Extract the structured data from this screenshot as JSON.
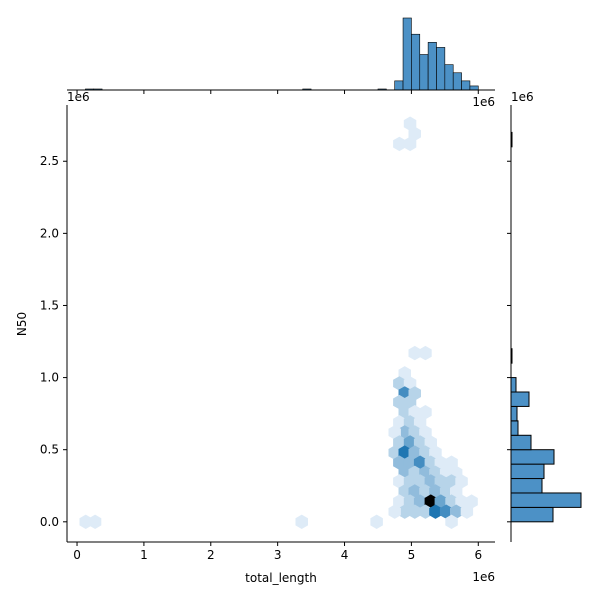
{
  "chart_data": {
    "type": "hexbin",
    "kind": "jointplot",
    "xlabel": "total_length",
    "ylabel": "N50",
    "x_offset_label": "1e6",
    "y_offset_label": "1e6",
    "xlim": [
      -0.15,
      6.25
    ],
    "ylim": [
      -0.14,
      2.89
    ],
    "x_ticks": [
      0,
      1,
      2,
      3,
      4,
      5,
      6
    ],
    "x_tick_labels": [
      "0",
      "1",
      "2",
      "3",
      "4",
      "5",
      "6"
    ],
    "y_ticks": [
      0.0,
      0.5,
      1.0,
      1.5,
      2.0,
      2.5
    ],
    "y_tick_labels": [
      "0.0",
      "0.5",
      "1.0",
      "1.5",
      "2.0",
      "2.5"
    ],
    "colors": {
      "base": "#1f77b4",
      "low": "#deebf7",
      "high": "#000000",
      "bar_fill": "#4c91c6",
      "bar_edge": "#000000"
    },
    "hexbin_cells": [
      {
        "x": 0.13,
        "y": 0.0,
        "c": 1
      },
      {
        "x": 0.27,
        "y": 0.0,
        "c": 1
      },
      {
        "x": 3.36,
        "y": 0.0,
        "c": 1
      },
      {
        "x": 4.48,
        "y": 0.0,
        "c": 1
      },
      {
        "x": 4.82,
        "y": 2.62,
        "c": 1
      },
      {
        "x": 4.98,
        "y": 2.62,
        "c": 1
      },
      {
        "x": 4.98,
        "y": 2.76,
        "c": 1
      },
      {
        "x": 5.05,
        "y": 2.69,
        "c": 1
      },
      {
        "x": 5.05,
        "y": 1.17,
        "c": 1
      },
      {
        "x": 5.21,
        "y": 1.17,
        "c": 1
      },
      {
        "x": 4.9,
        "y": 1.03,
        "c": 1
      },
      {
        "x": 4.82,
        "y": 0.96,
        "c": 2
      },
      {
        "x": 4.98,
        "y": 0.96,
        "c": 1
      },
      {
        "x": 4.9,
        "y": 0.89,
        "c": 5
      },
      {
        "x": 5.05,
        "y": 0.89,
        "c": 2
      },
      {
        "x": 4.82,
        "y": 0.83,
        "c": 2
      },
      {
        "x": 4.98,
        "y": 0.83,
        "c": 2
      },
      {
        "x": 4.9,
        "y": 0.76,
        "c": 2
      },
      {
        "x": 5.05,
        "y": 0.76,
        "c": 1
      },
      {
        "x": 5.21,
        "y": 0.76,
        "c": 1
      },
      {
        "x": 4.82,
        "y": 0.69,
        "c": 1
      },
      {
        "x": 4.98,
        "y": 0.69,
        "c": 2
      },
      {
        "x": 5.13,
        "y": 0.69,
        "c": 1
      },
      {
        "x": 4.9,
        "y": 0.62,
        "c": 3
      },
      {
        "x": 5.05,
        "y": 0.62,
        "c": 2
      },
      {
        "x": 4.75,
        "y": 0.62,
        "c": 1
      },
      {
        "x": 5.21,
        "y": 0.62,
        "c": 1
      },
      {
        "x": 4.82,
        "y": 0.55,
        "c": 2
      },
      {
        "x": 4.98,
        "y": 0.55,
        "c": 4
      },
      {
        "x": 5.13,
        "y": 0.55,
        "c": 2
      },
      {
        "x": 5.29,
        "y": 0.55,
        "c": 1
      },
      {
        "x": 4.75,
        "y": 0.48,
        "c": 2
      },
      {
        "x": 4.9,
        "y": 0.48,
        "c": 6
      },
      {
        "x": 5.05,
        "y": 0.48,
        "c": 3
      },
      {
        "x": 5.21,
        "y": 0.48,
        "c": 2
      },
      {
        "x": 5.36,
        "y": 0.48,
        "c": 1
      },
      {
        "x": 4.82,
        "y": 0.41,
        "c": 3
      },
      {
        "x": 4.98,
        "y": 0.41,
        "c": 3
      },
      {
        "x": 5.13,
        "y": 0.41,
        "c": 5
      },
      {
        "x": 5.29,
        "y": 0.41,
        "c": 2
      },
      {
        "x": 5.44,
        "y": 0.41,
        "c": 1
      },
      {
        "x": 5.6,
        "y": 0.41,
        "c": 1
      },
      {
        "x": 4.9,
        "y": 0.34,
        "c": 3
      },
      {
        "x": 5.05,
        "y": 0.34,
        "c": 2
      },
      {
        "x": 5.21,
        "y": 0.34,
        "c": 3
      },
      {
        "x": 5.36,
        "y": 0.34,
        "c": 2
      },
      {
        "x": 5.52,
        "y": 0.34,
        "c": 1
      },
      {
        "x": 5.67,
        "y": 0.34,
        "c": 1
      },
      {
        "x": 4.82,
        "y": 0.28,
        "c": 1
      },
      {
        "x": 4.98,
        "y": 0.28,
        "c": 2
      },
      {
        "x": 5.13,
        "y": 0.28,
        "c": 2
      },
      {
        "x": 5.29,
        "y": 0.28,
        "c": 3
      },
      {
        "x": 5.44,
        "y": 0.28,
        "c": 2
      },
      {
        "x": 5.6,
        "y": 0.28,
        "c": 2
      },
      {
        "x": 5.75,
        "y": 0.28,
        "c": 1
      },
      {
        "x": 4.9,
        "y": 0.21,
        "c": 2
      },
      {
        "x": 5.05,
        "y": 0.21,
        "c": 3
      },
      {
        "x": 5.21,
        "y": 0.21,
        "c": 2
      },
      {
        "x": 5.36,
        "y": 0.21,
        "c": 3
      },
      {
        "x": 5.52,
        "y": 0.21,
        "c": 2
      },
      {
        "x": 5.67,
        "y": 0.21,
        "c": 1
      },
      {
        "x": 4.82,
        "y": 0.14,
        "c": 1
      },
      {
        "x": 4.98,
        "y": 0.14,
        "c": 2
      },
      {
        "x": 5.13,
        "y": 0.14,
        "c": 3
      },
      {
        "x": 5.29,
        "y": 0.14,
        "c": 10
      },
      {
        "x": 5.44,
        "y": 0.14,
        "c": 4
      },
      {
        "x": 5.6,
        "y": 0.14,
        "c": 2
      },
      {
        "x": 5.75,
        "y": 0.14,
        "c": 1
      },
      {
        "x": 5.9,
        "y": 0.14,
        "c": 1
      },
      {
        "x": 4.9,
        "y": 0.07,
        "c": 2
      },
      {
        "x": 5.05,
        "y": 0.07,
        "c": 2
      },
      {
        "x": 5.21,
        "y": 0.07,
        "c": 2
      },
      {
        "x": 5.36,
        "y": 0.07,
        "c": 6
      },
      {
        "x": 5.52,
        "y": 0.07,
        "c": 5
      },
      {
        "x": 5.67,
        "y": 0.07,
        "c": 3
      },
      {
        "x": 5.83,
        "y": 0.07,
        "c": 1
      },
      {
        "x": 4.75,
        "y": 0.07,
        "c": 1
      },
      {
        "x": 5.6,
        "y": 0.0,
        "c": 1
      }
    ],
    "x_histogram": {
      "bin_width": 0.125,
      "bins": [
        {
          "x": 0.125,
          "count": 1
        },
        {
          "x": 0.25,
          "count": 1
        },
        {
          "x": 3.375,
          "count": 1
        },
        {
          "x": 4.5,
          "count": 1
        },
        {
          "x": 4.75,
          "count": 9
        },
        {
          "x": 4.875,
          "count": 71
        },
        {
          "x": 5.0,
          "count": 55
        },
        {
          "x": 5.125,
          "count": 35
        },
        {
          "x": 5.25,
          "count": 47
        },
        {
          "x": 5.375,
          "count": 42
        },
        {
          "x": 5.5,
          "count": 25
        },
        {
          "x": 5.625,
          "count": 17
        },
        {
          "x": 5.75,
          "count": 9
        },
        {
          "x": 5.875,
          "count": 4
        }
      ]
    },
    "y_histogram": {
      "bin_width": 0.1,
      "bins": [
        {
          "y": 0.0,
          "count": 42
        },
        {
          "y": 0.1,
          "count": 70
        },
        {
          "y": 0.2,
          "count": 31
        },
        {
          "y": 0.3,
          "count": 33
        },
        {
          "y": 0.4,
          "count": 43
        },
        {
          "y": 0.5,
          "count": 20
        },
        {
          "y": 0.6,
          "count": 7
        },
        {
          "y": 0.7,
          "count": 6
        },
        {
          "y": 0.8,
          "count": 18
        },
        {
          "y": 0.9,
          "count": 5
        },
        {
          "y": 1.1,
          "count": 1
        },
        {
          "y": 2.6,
          "count": 1
        }
      ]
    }
  }
}
